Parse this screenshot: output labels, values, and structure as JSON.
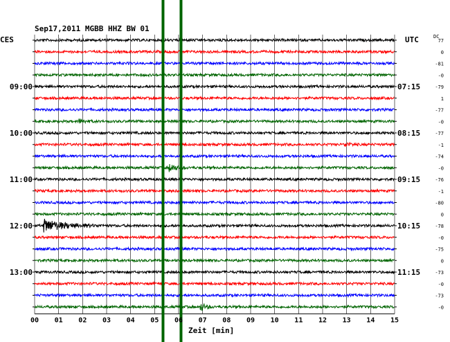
{
  "header": {
    "title": "Sep17,2011   MGBB HHZ BW 01",
    "left_tz": "CES",
    "right_tz": "UTC",
    "dc_label": "DC"
  },
  "chart_data": {
    "type": "line",
    "title": "Sep17,2011   MGBB HHZ BW 01",
    "xlabel": "Zeit [min]",
    "xlim": [
      0,
      15
    ],
    "x_ticks": [
      "00",
      "01",
      "02",
      "03",
      "04",
      "05",
      "06",
      "07",
      "08",
      "09",
      "10",
      "11",
      "12",
      "13",
      "14",
      "15"
    ],
    "trace_count": 24,
    "trace_color_cycle": [
      "#000000",
      "#ff0000",
      "#0000ff",
      "#006400"
    ],
    "left_time_labels": [
      {
        "trace": 4,
        "label": "09:00"
      },
      {
        "trace": 8,
        "label": "10:00"
      },
      {
        "trace": 12,
        "label": "11:00"
      },
      {
        "trace": 16,
        "label": "12:00"
      },
      {
        "trace": 20,
        "label": "13:00"
      }
    ],
    "right_time_labels": [
      {
        "trace": 4,
        "label": "07:15"
      },
      {
        "trace": 8,
        "label": "08:15"
      },
      {
        "trace": 12,
        "label": "09:15"
      },
      {
        "trace": 16,
        "label": "10:15"
      },
      {
        "trace": 20,
        "label": "11:15"
      }
    ],
    "dc_offsets": [
      "77",
      "0",
      "-81",
      "-0",
      "-79",
      "1",
      "-77",
      "-0",
      "-77",
      "-1",
      "-74",
      "-0",
      "-76",
      "-1",
      "-80",
      "0",
      "-78",
      "-0",
      "-75",
      "0",
      "-73",
      "-0",
      "-73",
      "-0"
    ],
    "events": [
      {
        "trace": 16,
        "minute": 0.35,
        "duration": 2.5,
        "amplitude": "large",
        "note": "local quake signal"
      },
      {
        "trace": 23,
        "minute": 6.9,
        "duration": 0.6,
        "amplitude": "medium"
      },
      {
        "trace": 7,
        "minute": 1.8,
        "duration": 0.8,
        "amplitude": "small"
      },
      {
        "trace": 9,
        "minute": 12.9,
        "duration": 0.6,
        "amplitude": "small"
      },
      {
        "trace": 11,
        "minute": 5.6,
        "duration": 0.8,
        "amplitude": "medium"
      }
    ],
    "markers": [
      {
        "minute": 5.35,
        "color": "#006400"
      },
      {
        "minute": 6.1,
        "color": "#006400"
      }
    ],
    "grid": true
  }
}
